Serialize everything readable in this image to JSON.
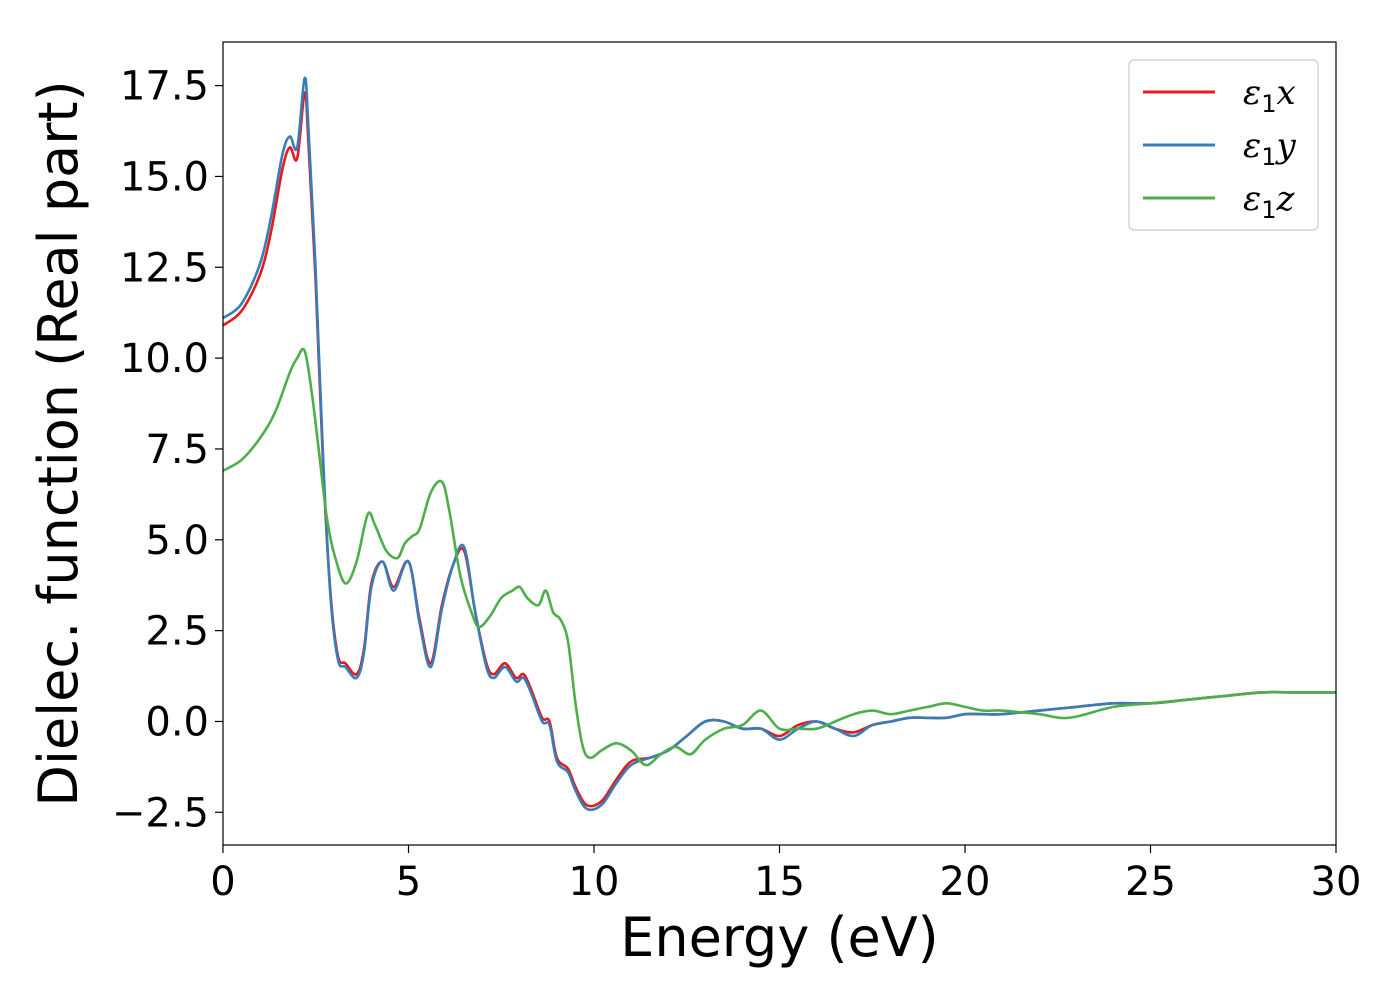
{
  "chart_data": {
    "type": "line",
    "title": "",
    "xlabel": "Energy (eV)",
    "ylabel": "Dielec. function (Real part)",
    "xlim": [
      0,
      30
    ],
    "ylim": [
      -3.4,
      18.7
    ],
    "xticks": [
      0,
      5,
      10,
      15,
      20,
      25,
      30
    ],
    "xtick_labels": [
      "0",
      "5",
      "10",
      "15",
      "20",
      "25",
      "30"
    ],
    "yticks": [
      -2.5,
      0.0,
      2.5,
      5.0,
      7.5,
      10.0,
      12.5,
      15.0,
      17.5
    ],
    "ytick_labels": [
      "−2.5",
      "0.0",
      "2.5",
      "5.0",
      "7.5",
      "10.0",
      "12.5",
      "15.0",
      "17.5"
    ],
    "grid": false,
    "legend_position": "top-right",
    "series": [
      {
        "name": "ε1x",
        "legend_base": "ε",
        "legend_sub": "1",
        "legend_var": "x",
        "color": "#e41a1c",
        "x": [
          0,
          0.5,
          1.0,
          1.3,
          1.6,
          1.8,
          2.0,
          2.2,
          2.3,
          2.5,
          2.7,
          2.9,
          3.1,
          3.3,
          3.6,
          3.8,
          4.0,
          4.3,
          4.6,
          5.0,
          5.3,
          5.6,
          5.9,
          6.2,
          6.5,
          6.8,
          7.1,
          7.3,
          7.6,
          7.9,
          8.1,
          8.3,
          8.6,
          8.8,
          9.0,
          9.3,
          9.5,
          9.8,
          10.2,
          10.6,
          11.0,
          11.5,
          12.0,
          12.5,
          13.0,
          13.5,
          14.0,
          14.5,
          15.0,
          15.5,
          16.0,
          16.5,
          17.0,
          17.5,
          18.0,
          18.5,
          19.0,
          19.5,
          20.0,
          20.5,
          21.0,
          22.0,
          23.0,
          24.0,
          25.0,
          26.0,
          27.0,
          28.0,
          29.0,
          30.0
        ],
        "y": [
          10.9,
          11.3,
          12.3,
          13.5,
          15.2,
          15.8,
          15.5,
          17.3,
          16.0,
          12.0,
          7.0,
          3.5,
          1.8,
          1.6,
          1.3,
          2.0,
          3.8,
          4.4,
          3.7,
          4.4,
          2.8,
          1.6,
          3.2,
          4.3,
          4.7,
          3.0,
          1.6,
          1.3,
          1.6,
          1.2,
          1.3,
          0.9,
          0.1,
          0.0,
          -1.0,
          -1.3,
          -1.8,
          -2.3,
          -2.2,
          -1.6,
          -1.1,
          -1.0,
          -0.8,
          -0.4,
          0.0,
          0.0,
          -0.2,
          -0.2,
          -0.4,
          -0.1,
          0.0,
          -0.2,
          -0.3,
          -0.1,
          0.0,
          0.1,
          0.1,
          0.1,
          0.2,
          0.2,
          0.2,
          0.3,
          0.4,
          0.5,
          0.5,
          0.6,
          0.7,
          0.8,
          0.8,
          0.8
        ]
      },
      {
        "name": "ε1y",
        "legend_base": "ε",
        "legend_sub": "1",
        "legend_var": "y",
        "color": "#377eb8",
        "x": [
          0,
          0.5,
          1.0,
          1.3,
          1.6,
          1.8,
          2.0,
          2.2,
          2.3,
          2.5,
          2.7,
          2.9,
          3.1,
          3.3,
          3.6,
          3.8,
          4.0,
          4.3,
          4.6,
          5.0,
          5.3,
          5.6,
          5.9,
          6.2,
          6.5,
          6.8,
          7.1,
          7.3,
          7.6,
          7.9,
          8.1,
          8.3,
          8.6,
          8.8,
          9.0,
          9.3,
          9.5,
          9.8,
          10.2,
          10.6,
          11.0,
          11.5,
          12.0,
          12.5,
          13.0,
          13.5,
          14.0,
          14.5,
          15.0,
          15.5,
          16.0,
          16.5,
          17.0,
          17.5,
          18.0,
          18.5,
          19.0,
          19.5,
          20.0,
          20.5,
          21.0,
          22.0,
          23.0,
          24.0,
          25.0,
          26.0,
          27.0,
          28.0,
          29.0,
          30.0
        ],
        "y": [
          11.1,
          11.5,
          12.6,
          13.9,
          15.6,
          16.1,
          15.8,
          17.7,
          16.4,
          12.3,
          7.2,
          3.4,
          1.7,
          1.5,
          1.2,
          1.9,
          3.7,
          4.4,
          3.6,
          4.4,
          2.7,
          1.5,
          3.1,
          4.3,
          4.8,
          3.0,
          1.5,
          1.2,
          1.5,
          1.1,
          1.2,
          0.8,
          0.0,
          -0.1,
          -1.1,
          -1.4,
          -1.9,
          -2.4,
          -2.3,
          -1.7,
          -1.2,
          -1.0,
          -0.8,
          -0.4,
          0.0,
          0.0,
          -0.2,
          -0.2,
          -0.5,
          -0.2,
          0.0,
          -0.2,
          -0.4,
          -0.1,
          0.0,
          0.1,
          0.1,
          0.1,
          0.2,
          0.2,
          0.2,
          0.3,
          0.4,
          0.5,
          0.5,
          0.6,
          0.7,
          0.8,
          0.8,
          0.8
        ]
      },
      {
        "name": "ε1z",
        "legend_base": "ε",
        "legend_sub": "1",
        "legend_var": "z",
        "color": "#4daf4a",
        "x": [
          0,
          0.5,
          1.0,
          1.4,
          1.8,
          2.0,
          2.2,
          2.4,
          2.6,
          2.8,
          3.0,
          3.3,
          3.6,
          3.9,
          4.1,
          4.4,
          4.7,
          4.9,
          5.1,
          5.3,
          5.6,
          5.9,
          6.1,
          6.4,
          6.7,
          6.9,
          7.2,
          7.5,
          7.8,
          8.0,
          8.2,
          8.5,
          8.7,
          8.9,
          9.1,
          9.3,
          9.5,
          9.7,
          9.9,
          10.2,
          10.6,
          11.0,
          11.4,
          11.8,
          12.2,
          12.6,
          13.0,
          13.5,
          14.0,
          14.5,
          15.0,
          15.5,
          16.0,
          16.5,
          17.0,
          17.5,
          18.0,
          18.5,
          19.0,
          19.5,
          20.0,
          20.5,
          21.0,
          22.0,
          22.8,
          24.0,
          25.0,
          26.0,
          27.0,
          28.0,
          29.0,
          30.0
        ],
        "y": [
          6.9,
          7.2,
          7.8,
          8.5,
          9.6,
          10.0,
          10.2,
          9.0,
          7.3,
          5.6,
          4.6,
          3.8,
          4.4,
          5.7,
          5.4,
          4.7,
          4.5,
          4.9,
          5.1,
          5.3,
          6.3,
          6.6,
          5.8,
          4.0,
          3.0,
          2.6,
          2.9,
          3.4,
          3.6,
          3.7,
          3.4,
          3.2,
          3.6,
          3.0,
          2.8,
          2.2,
          0.5,
          -0.7,
          -1.0,
          -0.8,
          -0.6,
          -0.8,
          -1.2,
          -0.9,
          -0.7,
          -0.9,
          -0.5,
          -0.2,
          -0.1,
          0.3,
          -0.2,
          -0.2,
          -0.2,
          0.0,
          0.2,
          0.3,
          0.2,
          0.3,
          0.4,
          0.5,
          0.4,
          0.3,
          0.3,
          0.2,
          0.1,
          0.4,
          0.5,
          0.6,
          0.7,
          0.8,
          0.8,
          0.8
        ]
      }
    ]
  }
}
